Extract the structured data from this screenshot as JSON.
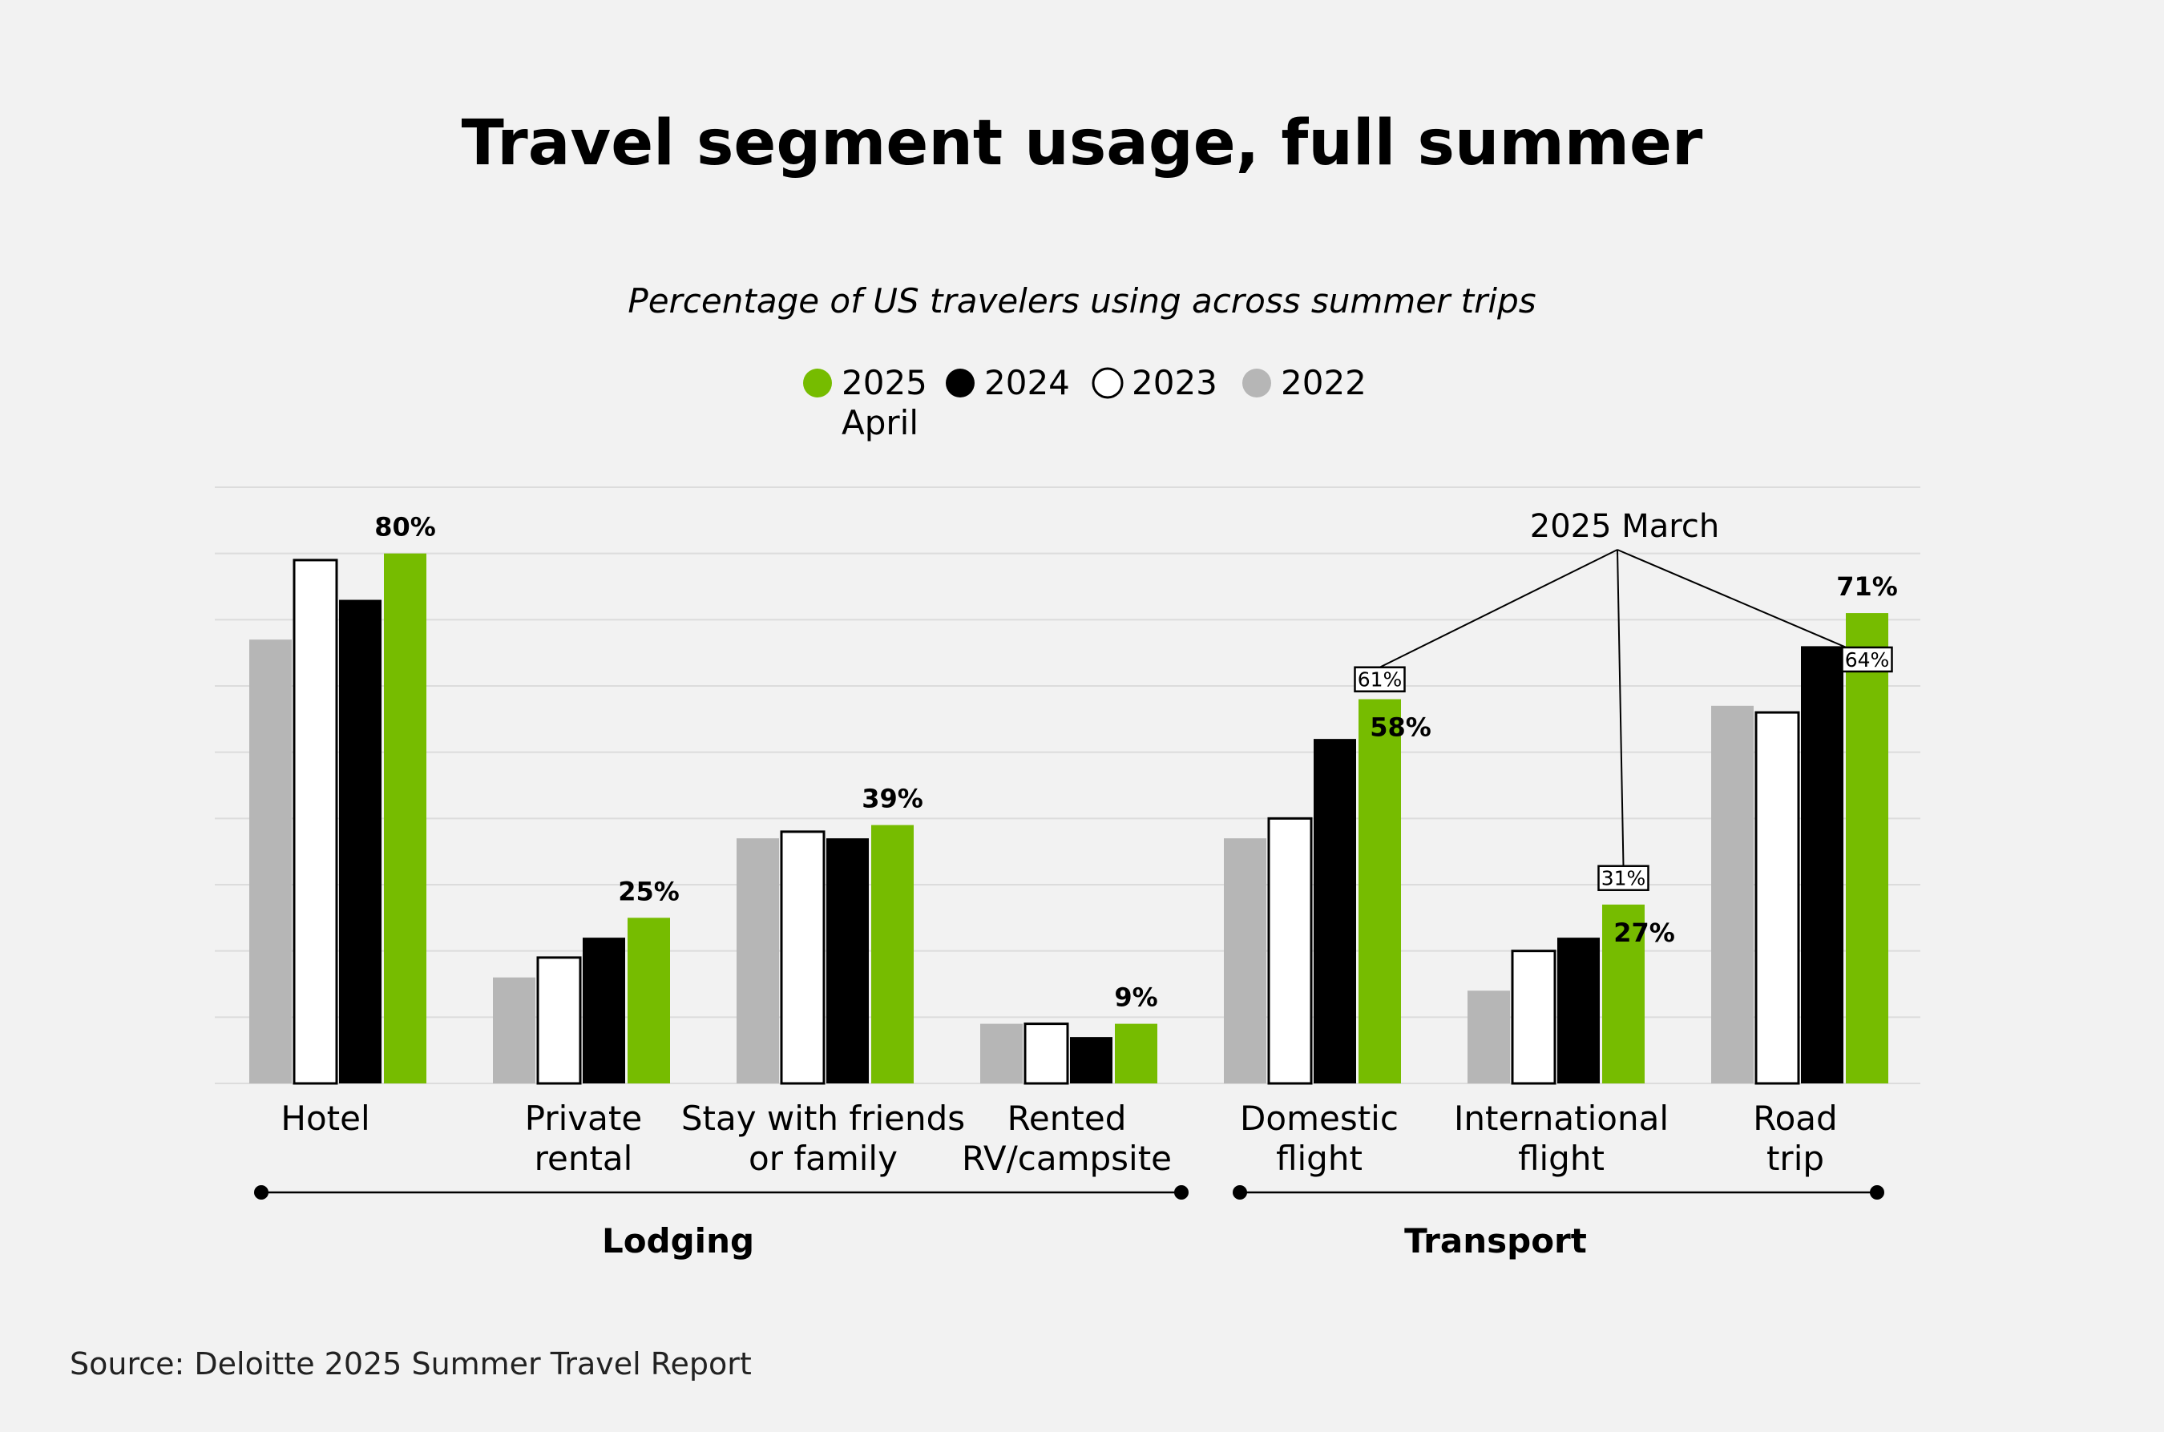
{
  "chart_data": {
    "type": "bar",
    "title": "Travel segment usage, full summer",
    "subtitle": "Percentage of US travelers using across summer trips",
    "ylim": [
      0,
      90
    ],
    "grid": true,
    "categories": [
      {
        "line1": "Hotel",
        "line2": ""
      },
      {
        "line1": "Private",
        "line2": "rental"
      },
      {
        "line1": "Stay with friends",
        "line2": "or family"
      },
      {
        "line1": "Rented",
        "line2": "RV/campsite"
      },
      {
        "line1": "Domestic",
        "line2": "flight"
      },
      {
        "line1": "International",
        "line2": "flight"
      },
      {
        "line1": "Road",
        "line2": "trip"
      }
    ],
    "series": [
      {
        "name": "2022",
        "legend_line1": "2022",
        "legend_line2": "",
        "color": "#b6b6b6",
        "values": [
          67,
          16,
          37,
          9,
          37,
          14,
          57
        ]
      },
      {
        "name": "2023",
        "legend_line1": "2023",
        "legend_line2": "",
        "color": "#ffffff",
        "values": [
          79,
          19,
          38,
          9,
          40,
          20,
          56
        ]
      },
      {
        "name": "2024",
        "legend_line1": "2024",
        "legend_line2": "",
        "color": "#000000",
        "values": [
          73,
          22,
          37,
          7,
          52,
          22,
          66
        ]
      },
      {
        "name": "2025 April",
        "legend_line1": "2025",
        "legend_line2": "April",
        "color": "#76bc00",
        "values": [
          80,
          25,
          39,
          9,
          58,
          27,
          71
        ]
      }
    ],
    "value_labels": [
      "80%",
      "25%",
      "39%",
      "9%",
      "58%",
      "27%",
      "71%"
    ],
    "march_2025": {
      "label": "2025 March",
      "points": [
        {
          "category_index": 4,
          "value": 61,
          "text": "61%"
        },
        {
          "category_index": 5,
          "value": 31,
          "text": "31%"
        },
        {
          "category_index": 6,
          "value": 64,
          "text": "64%"
        }
      ]
    },
    "groups": [
      {
        "name": "Lodging",
        "from_index": 0,
        "to_index": 3
      },
      {
        "name": "Transport",
        "from_index": 4,
        "to_index": 6
      }
    ],
    "source": "Source: Deloitte 2025 Summer Travel Report"
  }
}
